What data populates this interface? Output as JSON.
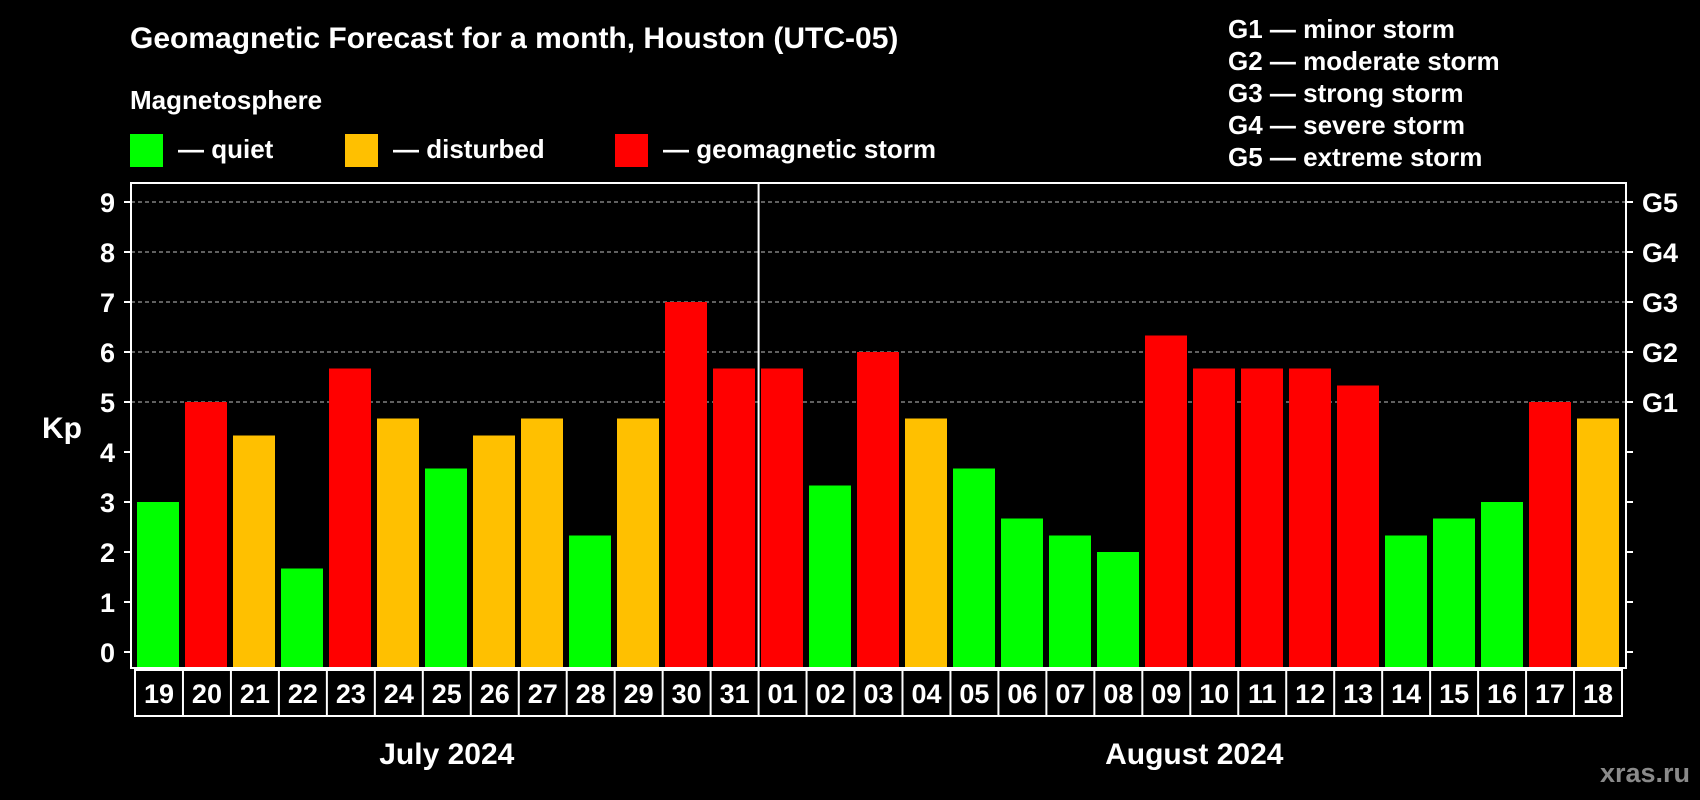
{
  "title": "Geomagnetic Forecast for a month, Houston (UTC-05)",
  "legend": {
    "heading": "Magnetosphere",
    "items": [
      {
        "label": "— quiet",
        "color": "#00ff00"
      },
      {
        "label": "— disturbed",
        "color": "#ffc000"
      },
      {
        "label": "— geomagnetic storm",
        "color": "#ff0000"
      }
    ]
  },
  "storm_scale": [
    "G1 — minor storm",
    "G2 — moderate storm",
    "G3 — strong storm",
    "G4 — severe storm",
    "G5 — extreme storm"
  ],
  "watermark": "xras.ru",
  "colors": {
    "background": "#000000",
    "quiet": "#00ff00",
    "disturbed": "#ffc000",
    "storm": "#ff0000",
    "axis": "#ffffff",
    "grid": "#9a9a9a"
  },
  "chart_data": {
    "type": "bar",
    "ylabel": "Kp",
    "ylim": [
      0,
      9.3
    ],
    "yticks": [
      0,
      1,
      2,
      3,
      4,
      5,
      6,
      7,
      8,
      9
    ],
    "right_axis": [
      {
        "value": 5,
        "label": "G1"
      },
      {
        "value": 6,
        "label": "G2"
      },
      {
        "value": 7,
        "label": "G3"
      },
      {
        "value": 8,
        "label": "G4"
      },
      {
        "value": 9,
        "label": "G5"
      }
    ],
    "grid": "dashed at Kp 5-9",
    "months": [
      {
        "label": "July 2024",
        "days": 13
      },
      {
        "label": "August 2024",
        "days": 18
      }
    ],
    "categories": [
      "19",
      "20",
      "21",
      "22",
      "23",
      "24",
      "25",
      "26",
      "27",
      "28",
      "29",
      "30",
      "31",
      "01",
      "02",
      "03",
      "04",
      "05",
      "06",
      "07",
      "08",
      "09",
      "10",
      "11",
      "12",
      "13",
      "14",
      "15",
      "16",
      "17",
      "18"
    ],
    "values": [
      3.0,
      5.0,
      4.33,
      1.67,
      5.67,
      4.67,
      3.67,
      4.33,
      4.67,
      2.33,
      4.67,
      7.0,
      5.67,
      5.67,
      3.33,
      6.0,
      4.67,
      3.67,
      2.67,
      2.33,
      2.0,
      6.33,
      5.67,
      5.67,
      5.67,
      5.33,
      2.33,
      2.67,
      3.0,
      5.0,
      4.67
    ],
    "levels": [
      "quiet",
      "storm",
      "disturbed",
      "quiet",
      "storm",
      "disturbed",
      "quiet",
      "disturbed",
      "disturbed",
      "quiet",
      "disturbed",
      "storm",
      "storm",
      "storm",
      "quiet",
      "storm",
      "disturbed",
      "quiet",
      "quiet",
      "quiet",
      "quiet",
      "storm",
      "storm",
      "storm",
      "storm",
      "storm",
      "quiet",
      "quiet",
      "quiet",
      "storm",
      "disturbed"
    ]
  }
}
